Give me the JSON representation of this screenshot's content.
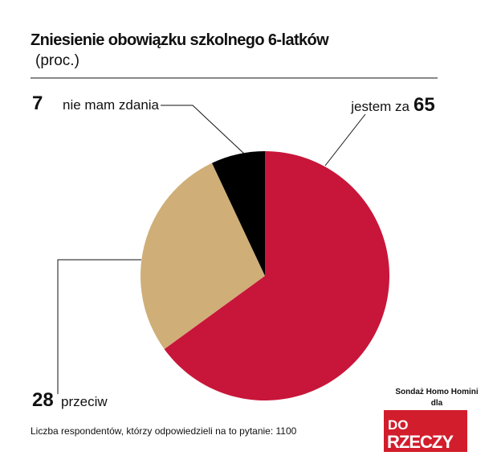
{
  "chart_data": {
    "type": "pie",
    "title": "Zniesienie obowiązku szkolnego 6-latków",
    "subtitle": "(proc.)",
    "categories": [
      "jestem za",
      "przeciw",
      "nie mam zdania"
    ],
    "values": [
      65,
      28,
      7
    ],
    "colors": [
      "#c8163a",
      "#cfae78",
      "#000000"
    ],
    "note": "Liczba respondentów, którzy odpowiedzieli na to pytanie: 1100",
    "source": "Sondaż Homo Homini",
    "source_for": "dla",
    "logo": [
      "DO",
      "RZECZY"
    ]
  }
}
